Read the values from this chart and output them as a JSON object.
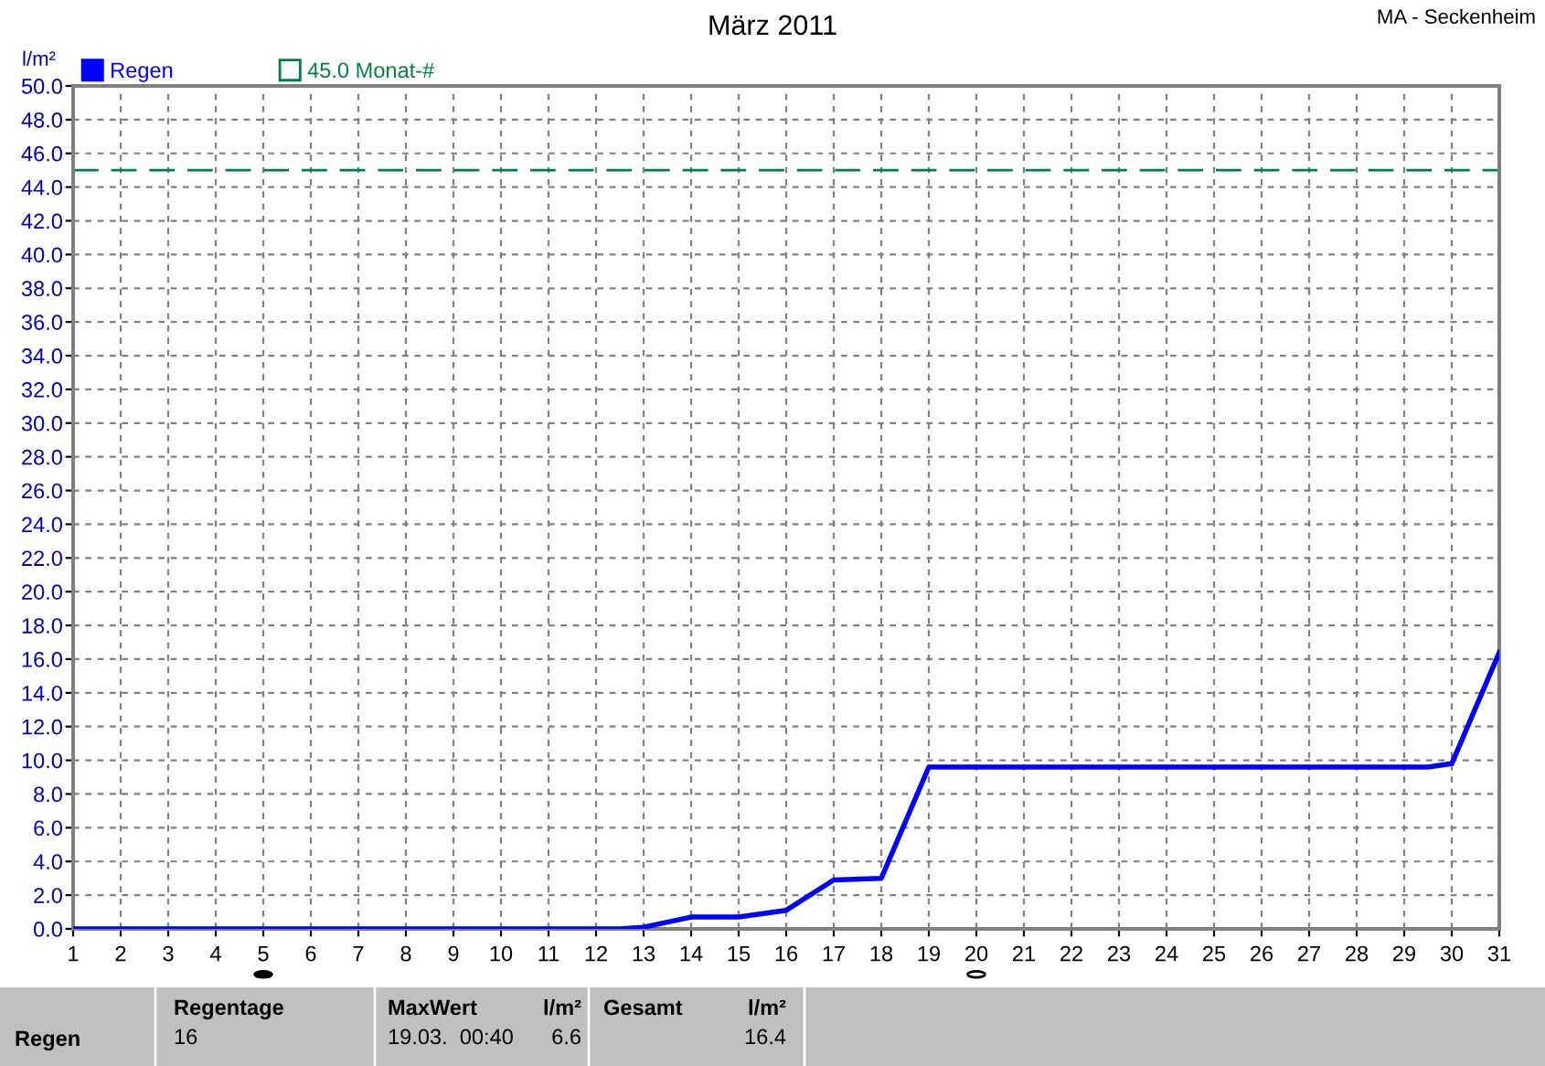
{
  "chart_data": {
    "type": "line",
    "title": "März 2011",
    "ylabel": "l/m²",
    "x": [
      1,
      2,
      3,
      4,
      5,
      6,
      7,
      8,
      9,
      10,
      11,
      12,
      12.5,
      13,
      14,
      15,
      16,
      17,
      18,
      19,
      20,
      21,
      22,
      23,
      24,
      25,
      26,
      27,
      28,
      29,
      29.5,
      30,
      31
    ],
    "series": [
      {
        "name": "Regen",
        "color": "#0000ff",
        "values": [
          0,
          0,
          0,
          0,
          0,
          0,
          0,
          0,
          0,
          0,
          0,
          0,
          0,
          0.1,
          0.7,
          0.7,
          1.1,
          2.9,
          3.0,
          9.6,
          9.6,
          9.6,
          9.6,
          9.6,
          9.6,
          9.6,
          9.6,
          9.6,
          9.6,
          9.6,
          9.6,
          9.8,
          16.4
        ]
      }
    ],
    "ref_lines": [
      {
        "axis": "y",
        "value": 45.0,
        "label": "45.0 Monat-#",
        "color": "#008040",
        "line_style": "dashed"
      }
    ],
    "xlim": [
      1,
      31
    ],
    "xticks": [
      1,
      2,
      3,
      4,
      5,
      6,
      7,
      8,
      9,
      10,
      11,
      12,
      13,
      14,
      15,
      16,
      17,
      18,
      19,
      20,
      21,
      22,
      23,
      24,
      25,
      26,
      27,
      28,
      29,
      30,
      31
    ],
    "ylim": [
      0,
      50
    ],
    "yticks": [
      {
        "value": 0,
        "label": "0.0"
      },
      {
        "value": 2,
        "label": "2.0"
      },
      {
        "value": 4,
        "label": "4.0"
      },
      {
        "value": 6,
        "label": "6.0"
      },
      {
        "value": 8,
        "label": "8.0"
      },
      {
        "value": 10,
        "label": "10.0"
      },
      {
        "value": 12,
        "label": "12.0"
      },
      {
        "value": 14,
        "label": "14.0"
      },
      {
        "value": 16,
        "label": "16.0"
      },
      {
        "value": 18,
        "label": "18.0"
      },
      {
        "value": 20,
        "label": "20.0"
      },
      {
        "value": 22,
        "label": "22.0"
      },
      {
        "value": 24,
        "label": "24.0"
      },
      {
        "value": 26,
        "label": "26.0"
      },
      {
        "value": 28,
        "label": "28.0"
      },
      {
        "value": 30,
        "label": "30.0"
      },
      {
        "value": 32,
        "label": "32.0"
      },
      {
        "value": 34,
        "label": "34.0"
      },
      {
        "value": 36,
        "label": "36.0"
      },
      {
        "value": 38,
        "label": "38.0"
      },
      {
        "value": 40,
        "label": "40.0"
      },
      {
        "value": 42,
        "label": "42.0"
      },
      {
        "value": 44,
        "label": "44.0"
      },
      {
        "value": 46,
        "label": "46.0"
      },
      {
        "value": 48,
        "label": "48.0"
      },
      {
        "value": 50,
        "label": "50.0"
      }
    ],
    "grid": true,
    "legend": "top left",
    "marker": "none",
    "line_style": "solid",
    "annotations": [
      "MA - Seckenheim",
      "Regen",
      "Regentage",
      "16",
      "MaxWert",
      "l/m²",
      "19.03.  00:40",
      "6.6",
      "Gesamt",
      "l/m²",
      "16.4"
    ]
  }
}
